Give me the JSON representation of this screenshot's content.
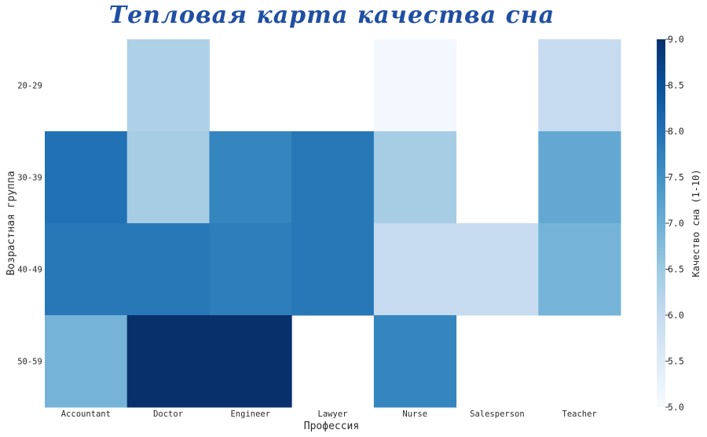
{
  "chart_data": {
    "type": "heatmap",
    "title": "Тепловая карта качества сна",
    "xlabel": "Профессия",
    "ylabel": "Возрастная группа",
    "x": [
      "Accountant",
      "Doctor",
      "Engineer",
      "Lawyer",
      "Nurse",
      "Salesperson",
      "Teacher"
    ],
    "y": [
      "20-29",
      "30-39",
      "40-49",
      "50-59"
    ],
    "z": [
      [
        null,
        6.3,
        null,
        null,
        5.1,
        null,
        6.0
      ],
      [
        8.0,
        6.4,
        7.7,
        7.9,
        6.4,
        null,
        7.1
      ],
      [
        7.9,
        7.9,
        7.8,
        7.9,
        6.0,
        6.0,
        6.9
      ],
      [
        6.9,
        9.0,
        9.0,
        null,
        7.7,
        null,
        null
      ]
    ],
    "colorscale": [
      "#f7fbff",
      "#deebf7",
      "#c6dbef",
      "#9ecae1",
      "#6baed6",
      "#4292c6",
      "#2171b5",
      "#08519c",
      "#08306b"
    ],
    "colorbar": {
      "title": "Качество сна (1-10)",
      "range": [
        5.0,
        9.0
      ],
      "ticks": [
        "5.0",
        "5.5",
        "6.0",
        "6.5",
        "7.0",
        "7.5",
        "8.0",
        "8.5",
        "9.0"
      ]
    }
  }
}
